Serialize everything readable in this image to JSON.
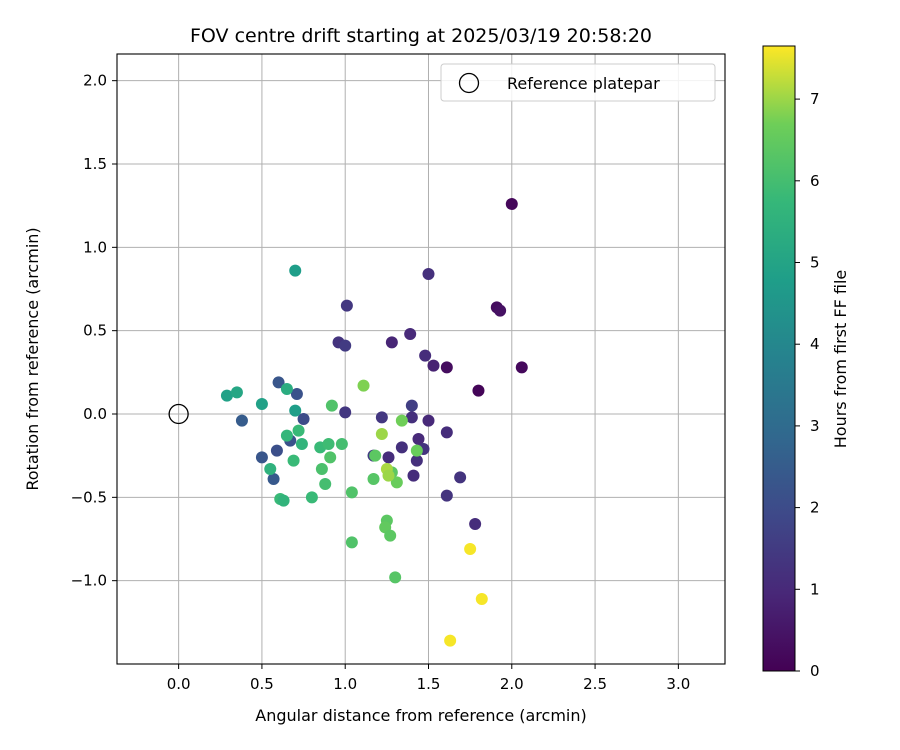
{
  "chart_data": {
    "type": "scatter",
    "title": "FOV centre drift starting at 2025/03/19 20:58:20",
    "xlabel": "Angular distance from reference (arcmin)",
    "ylabel": "Rotation from reference (arcmin)",
    "xlim": [
      -0.37,
      3.28
    ],
    "ylim": [
      -1.5,
      2.16
    ],
    "xticks": [
      0.0,
      0.5,
      1.0,
      1.5,
      2.0,
      2.5,
      3.0
    ],
    "xtick_labels": [
      "0.0",
      "0.5",
      "1.0",
      "1.5",
      "2.0",
      "2.5",
      "3.0"
    ],
    "yticks": [
      -1.0,
      -0.5,
      0.0,
      0.5,
      1.0,
      1.5,
      2.0
    ],
    "ytick_labels": [
      "−1.0",
      "−0.5",
      "0.0",
      "0.5",
      "1.0",
      "1.5",
      "2.0"
    ],
    "grid": true,
    "legend": {
      "position": "upper-right",
      "entries": [
        "Reference platepar"
      ]
    },
    "reference": {
      "x": 0.0,
      "y": 0.0,
      "label": "Reference platepar",
      "marker": "open-circle"
    },
    "colorbar": {
      "label": "Hours from first FF file",
      "colormap": "viridis",
      "range": [
        0,
        7.65
      ],
      "ticks": [
        0,
        1,
        2,
        3,
        4,
        5,
        6,
        7
      ],
      "tick_labels": [
        "0",
        "1",
        "2",
        "3",
        "4",
        "5",
        "6",
        "7"
      ]
    },
    "points": [
      {
        "x": 2.0,
        "y": 1.26,
        "c": 0.15
      },
      {
        "x": 1.91,
        "y": 0.64,
        "c": 0.3
      },
      {
        "x": 1.93,
        "y": 0.62,
        "c": 0.4
      },
      {
        "x": 2.06,
        "y": 0.28,
        "c": 0.2
      },
      {
        "x": 1.8,
        "y": 0.14,
        "c": 0.1
      },
      {
        "x": 1.61,
        "y": 0.28,
        "c": 0.3
      },
      {
        "x": 1.53,
        "y": 0.29,
        "c": 0.8
      },
      {
        "x": 1.5,
        "y": 0.84,
        "c": 1.2
      },
      {
        "x": 1.48,
        "y": 0.35,
        "c": 1.1
      },
      {
        "x": 1.39,
        "y": 0.48,
        "c": 1.0
      },
      {
        "x": 1.28,
        "y": 0.43,
        "c": 0.9
      },
      {
        "x": 1.01,
        "y": 0.65,
        "c": 1.4
      },
      {
        "x": 0.96,
        "y": 0.43,
        "c": 1.3
      },
      {
        "x": 1.0,
        "y": 0.41,
        "c": 1.5
      },
      {
        "x": 1.0,
        "y": 0.01,
        "c": 1.4
      },
      {
        "x": 1.4,
        "y": 0.05,
        "c": 1.6
      },
      {
        "x": 1.4,
        "y": -0.02,
        "c": 1.2
      },
      {
        "x": 1.22,
        "y": -0.02,
        "c": 1.4
      },
      {
        "x": 1.5,
        "y": -0.04,
        "c": 1.0
      },
      {
        "x": 1.61,
        "y": -0.11,
        "c": 1.1
      },
      {
        "x": 1.44,
        "y": -0.15,
        "c": 1.0
      },
      {
        "x": 1.34,
        "y": -0.2,
        "c": 1.2
      },
      {
        "x": 1.47,
        "y": -0.21,
        "c": 1.3
      },
      {
        "x": 1.26,
        "y": -0.26,
        "c": 1.1
      },
      {
        "x": 1.43,
        "y": -0.28,
        "c": 1.2
      },
      {
        "x": 1.17,
        "y": -0.25,
        "c": 1.5
      },
      {
        "x": 1.41,
        "y": -0.37,
        "c": 1.1
      },
      {
        "x": 1.69,
        "y": -0.38,
        "c": 1.3
      },
      {
        "x": 1.61,
        "y": -0.49,
        "c": 1.3
      },
      {
        "x": 1.78,
        "y": -0.66,
        "c": 1.1
      },
      {
        "x": 0.75,
        "y": -0.03,
        "c": 2.0
      },
      {
        "x": 0.71,
        "y": 0.12,
        "c": 2.2
      },
      {
        "x": 0.6,
        "y": 0.19,
        "c": 2.3
      },
      {
        "x": 0.38,
        "y": -0.04,
        "c": 2.5
      },
      {
        "x": 0.67,
        "y": -0.16,
        "c": 2.2
      },
      {
        "x": 0.59,
        "y": -0.22,
        "c": 2.1
      },
      {
        "x": 0.5,
        "y": -0.26,
        "c": 2.3
      },
      {
        "x": 0.57,
        "y": -0.39,
        "c": 2.4
      },
      {
        "x": 0.7,
        "y": 0.86,
        "c": 4.8
      },
      {
        "x": 0.29,
        "y": 0.11,
        "c": 4.9
      },
      {
        "x": 0.35,
        "y": 0.13,
        "c": 5.1
      },
      {
        "x": 0.5,
        "y": 0.06,
        "c": 4.9
      },
      {
        "x": 0.65,
        "y": 0.15,
        "c": 5.3
      },
      {
        "x": 0.7,
        "y": 0.02,
        "c": 4.8
      },
      {
        "x": 0.72,
        "y": -0.1,
        "c": 5.8
      },
      {
        "x": 0.65,
        "y": -0.13,
        "c": 5.7
      },
      {
        "x": 0.74,
        "y": -0.18,
        "c": 5.6
      },
      {
        "x": 0.69,
        "y": -0.28,
        "c": 5.8
      },
      {
        "x": 0.55,
        "y": -0.33,
        "c": 5.5
      },
      {
        "x": 0.61,
        "y": -0.51,
        "c": 5.8
      },
      {
        "x": 0.63,
        "y": -0.52,
        "c": 5.6
      },
      {
        "x": 0.8,
        "y": -0.5,
        "c": 5.8
      },
      {
        "x": 0.85,
        "y": -0.2,
        "c": 5.8
      },
      {
        "x": 0.9,
        "y": -0.18,
        "c": 5.9
      },
      {
        "x": 0.98,
        "y": -0.18,
        "c": 6.0
      },
      {
        "x": 0.91,
        "y": -0.26,
        "c": 6.2
      },
      {
        "x": 0.86,
        "y": -0.33,
        "c": 6.1
      },
      {
        "x": 0.88,
        "y": -0.42,
        "c": 6.0
      },
      {
        "x": 0.92,
        "y": 0.05,
        "c": 6.2
      },
      {
        "x": 1.04,
        "y": -0.47,
        "c": 6.2
      },
      {
        "x": 1.04,
        "y": -0.77,
        "c": 6.2
      },
      {
        "x": 1.17,
        "y": -0.39,
        "c": 6.3
      },
      {
        "x": 1.18,
        "y": -0.25,
        "c": 6.4
      },
      {
        "x": 1.25,
        "y": -0.64,
        "c": 6.4
      },
      {
        "x": 1.24,
        "y": -0.68,
        "c": 6.5
      },
      {
        "x": 1.27,
        "y": -0.73,
        "c": 6.4
      },
      {
        "x": 1.3,
        "y": -0.98,
        "c": 6.3
      },
      {
        "x": 1.28,
        "y": -0.35,
        "c": 6.4
      },
      {
        "x": 1.31,
        "y": -0.41,
        "c": 6.6
      },
      {
        "x": 1.34,
        "y": -0.04,
        "c": 6.7
      },
      {
        "x": 1.43,
        "y": -0.22,
        "c": 6.6
      },
      {
        "x": 1.11,
        "y": 0.17,
        "c": 6.8
      },
      {
        "x": 1.22,
        "y": -0.12,
        "c": 7.0
      },
      {
        "x": 1.25,
        "y": -0.33,
        "c": 7.1
      },
      {
        "x": 1.26,
        "y": -0.37,
        "c": 7.0
      },
      {
        "x": 1.75,
        "y": -0.81,
        "c": 7.6
      },
      {
        "x": 1.82,
        "y": -1.11,
        "c": 7.6
      },
      {
        "x": 1.63,
        "y": -1.36,
        "c": 7.6
      }
    ]
  }
}
